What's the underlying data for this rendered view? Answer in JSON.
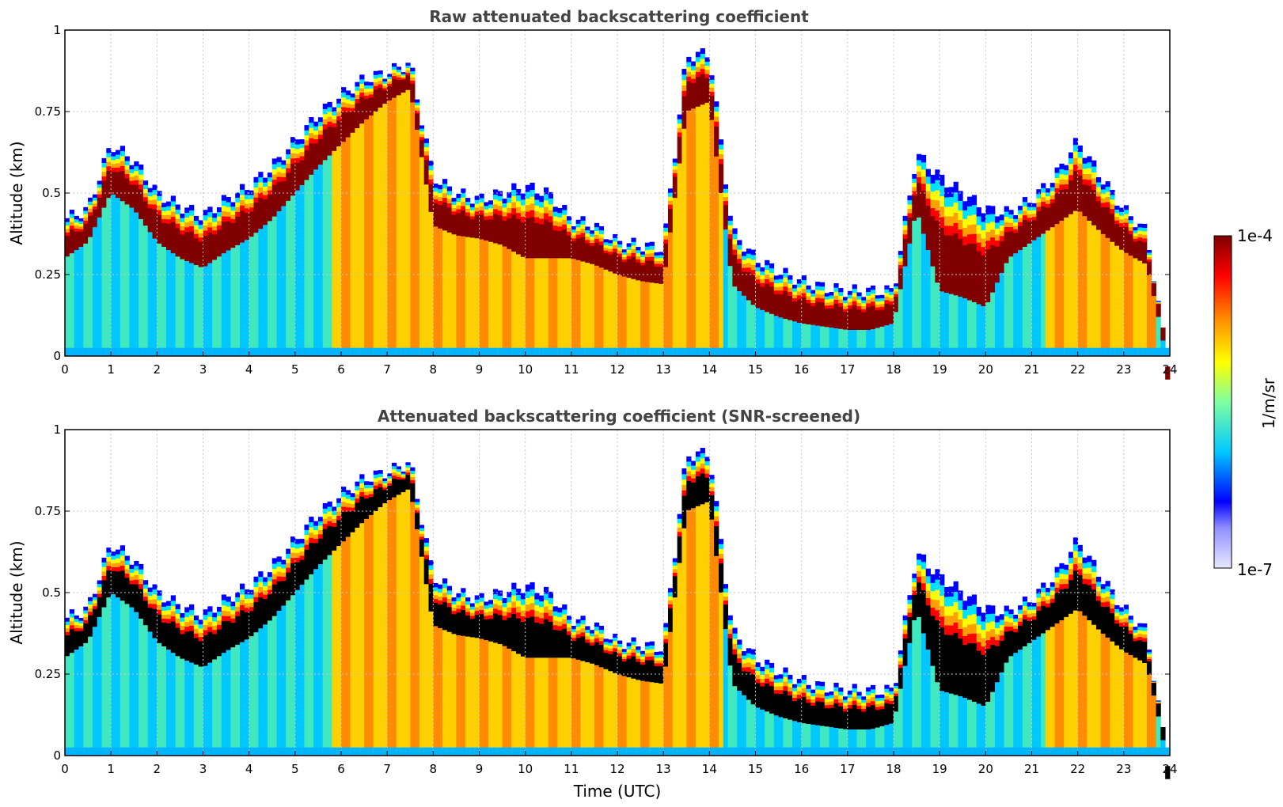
{
  "chart_data": [
    {
      "type": "heatmap",
      "title": "Raw attenuated backscattering coefficient",
      "xlabel": "",
      "ylabel": "Altitude (km)",
      "xlim": [
        0,
        24
      ],
      "ylim": [
        0,
        1
      ],
      "x_ticks": [
        "0",
        "1",
        "2",
        "3",
        "4",
        "5",
        "6",
        "7",
        "8",
        "9",
        "10",
        "11",
        "12",
        "13",
        "14",
        "15",
        "16",
        "17",
        "18",
        "19",
        "20",
        "21",
        "22",
        "23",
        "24"
      ],
      "y_ticks": [
        "0",
        "0.25",
        "0.5",
        "0.75",
        "1"
      ],
      "grid": true,
      "x": [
        0,
        0.5,
        1,
        1.5,
        2,
        2.5,
        3,
        3.5,
        4,
        4.5,
        5,
        5.5,
        6,
        6.5,
        7,
        7.5,
        8,
        8.5,
        9,
        9.5,
        10,
        10.5,
        11,
        11.5,
        12,
        12.5,
        13,
        13.5,
        14,
        14.5,
        15,
        15.5,
        16,
        16.5,
        17,
        17.5,
        18,
        18.5,
        19,
        19.5,
        20,
        20.5,
        21,
        21.5,
        22,
        22.5,
        23,
        23.5
      ],
      "boundary_layer_top_km": [
        0.42,
        0.45,
        0.65,
        0.6,
        0.5,
        0.46,
        0.43,
        0.48,
        0.52,
        0.58,
        0.66,
        0.74,
        0.8,
        0.85,
        0.87,
        0.9,
        0.55,
        0.5,
        0.48,
        0.5,
        0.52,
        0.5,
        0.42,
        0.4,
        0.35,
        0.34,
        0.33,
        0.92,
        0.93,
        0.38,
        0.3,
        0.26,
        0.23,
        0.21,
        0.2,
        0.2,
        0.2,
        0.62,
        0.55,
        0.5,
        0.45,
        0.44,
        0.48,
        0.55,
        0.66,
        0.55,
        0.45,
        0.38
      ],
      "dense_layer_km": [
        0.3,
        0.35,
        0.5,
        0.45,
        0.35,
        0.3,
        0.27,
        0.32,
        0.36,
        0.42,
        0.5,
        0.58,
        0.65,
        0.72,
        0.78,
        0.82,
        0.4,
        0.37,
        0.36,
        0.34,
        0.3,
        0.3,
        0.3,
        0.28,
        0.25,
        0.23,
        0.22,
        0.75,
        0.78,
        0.22,
        0.15,
        0.12,
        0.1,
        0.09,
        0.08,
        0.08,
        0.1,
        0.45,
        0.2,
        0.18,
        0.15,
        0.3,
        0.35,
        0.4,
        0.45,
        0.38,
        0.32,
        0.28
      ]
    },
    {
      "type": "heatmap",
      "title": "Attenuated backscattering coefficient (SNR-screened)",
      "xlabel": "Time (UTC)",
      "ylabel": "Altitude (km)",
      "xlim": [
        0,
        24
      ],
      "ylim": [
        0,
        1
      ],
      "x_ticks": [
        "0",
        "1",
        "2",
        "3",
        "4",
        "5",
        "6",
        "7",
        "8",
        "9",
        "10",
        "11",
        "12",
        "13",
        "14",
        "15",
        "16",
        "17",
        "18",
        "19",
        "20",
        "21",
        "22",
        "23",
        "24"
      ],
      "y_ticks": [
        "0",
        "0.25",
        "0.5",
        "0.75",
        "1"
      ],
      "grid": true,
      "saturated_color": "#000000"
    }
  ],
  "colorbar": {
    "label": "1/m/sr",
    "max_label": "1e-4",
    "min_label": "1e-7",
    "colormap": [
      "#e8e8ff",
      "#0000ff",
      "#00c8ff",
      "#7fffa0",
      "#ffff00",
      "#ff8c00",
      "#ff0000",
      "#800000"
    ]
  }
}
